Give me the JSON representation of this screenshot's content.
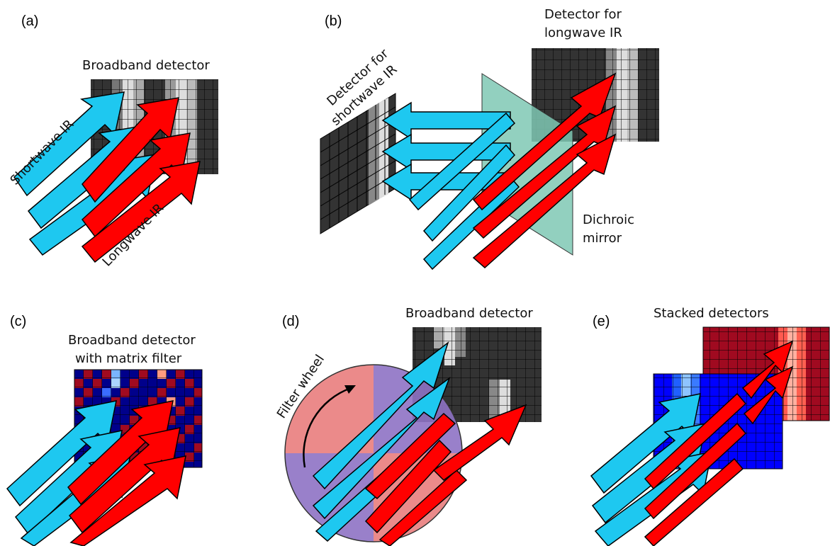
{
  "panels": [
    {
      "label": "(a)",
      "title": "Broadband detector",
      "arrow_labels": [
        "Shortwave IR",
        "Longwave IR"
      ]
    },
    {
      "label": "(b)",
      "titles": [
        "Detector for",
        "longwave IR"
      ],
      "shortwave_titles": [
        "Detector for",
        "shortwave IR"
      ],
      "mirror_labels": [
        "Dichroic",
        "mirror"
      ]
    },
    {
      "label": "(c)",
      "titles": [
        "Broadband detector",
        "with matrix filter"
      ]
    },
    {
      "label": "(d)",
      "title": "Broadband detector",
      "wheel_label": "Filter wheel"
    },
    {
      "label": "(e)",
      "title": "Stacked detectors"
    }
  ],
  "colors": {
    "shortwave_arrow": "#1ec8f0",
    "longwave_arrow": "#ff0000",
    "mirror": "#7fc8b4",
    "detector_dark": "#333333",
    "filter_red": "#e98080",
    "filter_purple": "#8e72c4",
    "stack_red": "#a00a20",
    "stack_blue": "#0000ff"
  }
}
